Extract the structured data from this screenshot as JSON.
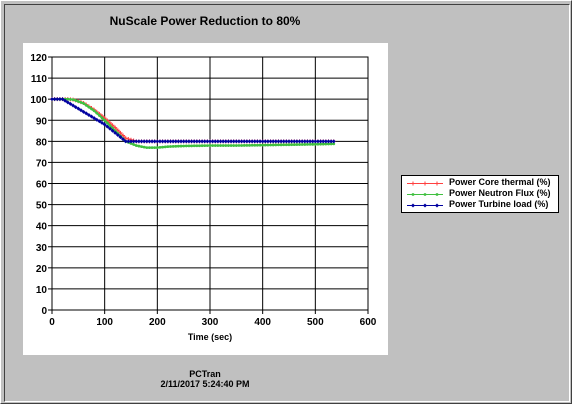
{
  "chart_data": {
    "type": "line",
    "title": "NuScale Power Reduction to 80%",
    "xlabel": "Time (sec)",
    "ylabel": "",
    "xlim": [
      0,
      600
    ],
    "ylim": [
      0,
      120
    ],
    "x_ticks": [
      0,
      100,
      200,
      300,
      400,
      500,
      600
    ],
    "y_ticks": [
      0,
      10,
      20,
      30,
      40,
      50,
      60,
      70,
      80,
      90,
      100,
      110,
      120
    ],
    "grid": true,
    "legend_position": "right",
    "series": [
      {
        "name": "Power Core thermal (%)",
        "color": "#ff4040",
        "marker": "plus",
        "x": [
          0,
          20,
          30,
          40,
          60,
          80,
          100,
          120,
          140,
          160,
          180,
          200,
          250,
          300,
          350,
          400,
          450,
          500,
          535
        ],
        "y": [
          100,
          100,
          100,
          99.8,
          98.2,
          95,
          91,
          86.5,
          81.5,
          80,
          80,
          80,
          80,
          80,
          80,
          80,
          80,
          80,
          80
        ]
      },
      {
        "name": "Power Neutron Flux (%)",
        "color": "#40c040",
        "marker": "dot",
        "x": [
          0,
          20,
          30,
          40,
          60,
          80,
          100,
          120,
          140,
          160,
          180,
          200,
          220,
          250,
          300,
          350,
          400,
          450,
          500,
          535
        ],
        "y": [
          100,
          100,
          100,
          99.8,
          98,
          94.5,
          90,
          85,
          80,
          78,
          77,
          77,
          77.5,
          77.8,
          78,
          78,
          78.2,
          78.4,
          78.6,
          78.8
        ]
      },
      {
        "name": "Power Turbine load (%)",
        "color": "#0000a0",
        "marker": "diamond",
        "x": [
          0,
          20,
          40,
          60,
          80,
          100,
          120,
          140,
          160,
          200,
          250,
          300,
          350,
          400,
          450,
          500,
          535
        ],
        "y": [
          100,
          100,
          97,
          94,
          91,
          88,
          84,
          80,
          80,
          80,
          80,
          80,
          80,
          80,
          80,
          80,
          80
        ]
      }
    ]
  },
  "footer": {
    "line1": "PCTran",
    "line2": "2/11/2017 5:24:40 PM"
  }
}
